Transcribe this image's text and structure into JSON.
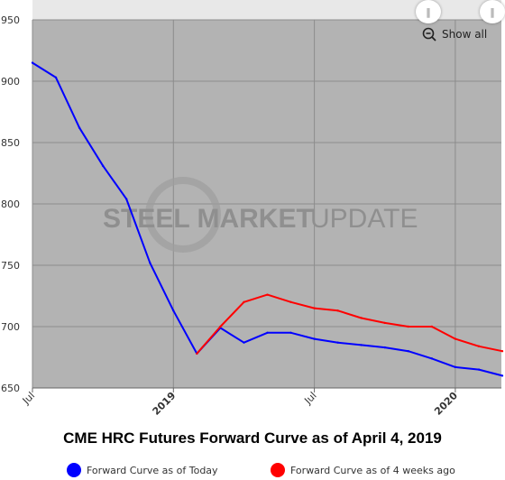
{
  "chart_data": {
    "type": "line",
    "title": "CME HRC Futures Forward Curve as of April 4, 2019",
    "xlabel": "",
    "ylabel": "",
    "ylim": [
      650,
      950
    ],
    "y_ticks": [
      950,
      900,
      850,
      800,
      750,
      700,
      650
    ],
    "x_ticks": [
      {
        "label": "Jul",
        "bold": false
      },
      {
        "label": "2019",
        "bold": true
      },
      {
        "label": "Jul",
        "bold": false
      },
      {
        "label": "2020",
        "bold": true
      }
    ],
    "grid": true,
    "legend_position": "bottom",
    "series": [
      {
        "name": "Forward Curve as of Today",
        "color": "#0000ff",
        "points": [
          [
            "2018-07-01",
            915
          ],
          [
            "2018-08-01",
            903
          ],
          [
            "2018-09-01",
            862
          ],
          [
            "2018-10-01",
            831
          ],
          [
            "2018-11-01",
            804
          ],
          [
            "2018-12-01",
            752
          ],
          [
            "2019-01-01",
            713
          ],
          [
            "2019-02-01",
            678
          ],
          [
            "2019-03-01",
            699
          ],
          [
            "2019-04-01",
            687
          ],
          [
            "2019-05-01",
            695
          ],
          [
            "2019-06-01",
            695
          ],
          [
            "2019-07-01",
            690
          ],
          [
            "2019-08-01",
            687
          ],
          [
            "2019-09-01",
            685
          ],
          [
            "2019-10-01",
            683
          ],
          [
            "2019-11-01",
            680
          ],
          [
            "2019-12-01",
            674
          ],
          [
            "2020-01-01",
            667
          ],
          [
            "2020-02-01",
            665
          ],
          [
            "2020-03-01",
            660
          ]
        ]
      },
      {
        "name": "Forward Curve as of 4 weeks ago",
        "color": "#ff0000",
        "points": [
          [
            "2019-02-01",
            678
          ],
          [
            "2019-03-01",
            700
          ],
          [
            "2019-04-01",
            720
          ],
          [
            "2019-05-01",
            726
          ],
          [
            "2019-06-01",
            720
          ],
          [
            "2019-07-01",
            715
          ],
          [
            "2019-08-01",
            713
          ],
          [
            "2019-09-01",
            707
          ],
          [
            "2019-10-01",
            703
          ],
          [
            "2019-11-01",
            700
          ],
          [
            "2019-12-01",
            700
          ],
          [
            "2020-01-01",
            690
          ],
          [
            "2020-02-01",
            684
          ],
          [
            "2020-03-01",
            680
          ]
        ]
      }
    ],
    "watermark": {
      "bold_text": "STEEL MARKET",
      "light_text": "UPDATE"
    }
  },
  "ui": {
    "show_all_label": "Show all",
    "handle_left_icon": "drag-handle-icon",
    "handle_right_icon": "drag-handle-icon",
    "zoom_icon": "zoom-out-icon",
    "plot_background": "#b3b3b3",
    "nav_strip_color": "#e8e8e8"
  }
}
